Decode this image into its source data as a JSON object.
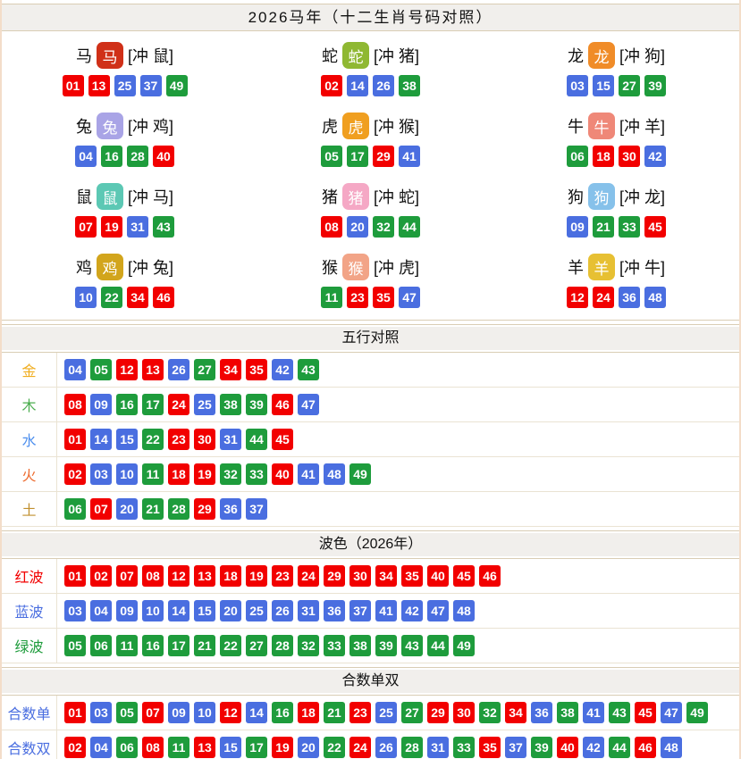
{
  "title": "2026马年（十二生肖号码对照）",
  "palette": {
    "r": "#f20000",
    "b": "#4a6ee0",
    "g": "#1e9c3c"
  },
  "zodiac": {
    "cells": [
      {
        "id": "horse",
        "animal": "马",
        "clash": "[冲 鼠]",
        "icon": "horse-icon",
        "icon_color": "#d03018",
        "numbers": [
          "01r",
          "13r",
          "25b",
          "37b",
          "49g"
        ]
      },
      {
        "id": "snake",
        "animal": "蛇",
        "clash": "[冲 猪]",
        "icon": "snake-icon",
        "icon_color": "#8fb832",
        "numbers": [
          "02r",
          "14b",
          "26b",
          "38g"
        ]
      },
      {
        "id": "dragon",
        "animal": "龙",
        "clash": "[冲 狗]",
        "icon": "dragon-icon",
        "icon_color": "#f08c28",
        "numbers": [
          "03b",
          "15b",
          "27g",
          "39g"
        ]
      },
      {
        "id": "rabbit",
        "animal": "兔",
        "clash": "[冲 鸡]",
        "icon": "rabbit-icon",
        "icon_color": "#a9a4e6",
        "numbers": [
          "04b",
          "16g",
          "28g",
          "40r"
        ]
      },
      {
        "id": "tiger",
        "animal": "虎",
        "clash": "[冲 猴]",
        "icon": "tiger-icon",
        "icon_color": "#f09f20",
        "numbers": [
          "05g",
          "17g",
          "29r",
          "41b"
        ]
      },
      {
        "id": "ox",
        "animal": "牛",
        "clash": "[冲 羊]",
        "icon": "ox-icon",
        "icon_color": "#ef8878",
        "numbers": [
          "06g",
          "18r",
          "30r",
          "42b"
        ]
      },
      {
        "id": "rat",
        "animal": "鼠",
        "clash": "[冲 马]",
        "icon": "rat-icon",
        "icon_color": "#5cc8b4",
        "numbers": [
          "07r",
          "19r",
          "31b",
          "43g"
        ]
      },
      {
        "id": "pig",
        "animal": "猪",
        "clash": "[冲 蛇]",
        "icon": "pig-icon",
        "icon_color": "#f5a8c5",
        "numbers": [
          "08r",
          "20b",
          "32g",
          "44g"
        ]
      },
      {
        "id": "dog",
        "animal": "狗",
        "clash": "[冲 龙]",
        "icon": "dog-icon",
        "icon_color": "#86c1ea",
        "numbers": [
          "09b",
          "21g",
          "33g",
          "45r"
        ]
      },
      {
        "id": "rooster",
        "animal": "鸡",
        "clash": "[冲 兔]",
        "icon": "rooster-icon",
        "icon_color": "#d2a51c",
        "numbers": [
          "10b",
          "22g",
          "34r",
          "46r"
        ]
      },
      {
        "id": "monkey",
        "animal": "猴",
        "clash": "[冲 虎]",
        "icon": "monkey-icon",
        "icon_color": "#f2a487",
        "numbers": [
          "11g",
          "23r",
          "35r",
          "47b"
        ]
      },
      {
        "id": "goat",
        "animal": "羊",
        "clash": "[冲 牛]",
        "icon": "goat-icon",
        "icon_color": "#e7c033",
        "numbers": [
          "12r",
          "24r",
          "36b",
          "48b"
        ]
      }
    ]
  },
  "sections": [
    {
      "id": "wuxing",
      "title": "五行对照",
      "rows": [
        {
          "label": "金",
          "label_color": "#f0ad1e",
          "numbers": [
            "04b",
            "05g",
            "12r",
            "13r",
            "26b",
            "27g",
            "34r",
            "35r",
            "42b",
            "43g"
          ]
        },
        {
          "label": "木",
          "label_color": "#4bae4f",
          "numbers": [
            "08r",
            "09b",
            "16g",
            "17g",
            "24r",
            "25b",
            "38g",
            "39g",
            "46r",
            "47b"
          ]
        },
        {
          "label": "水",
          "label_color": "#4d8fee",
          "numbers": [
            "01r",
            "14b",
            "15b",
            "22g",
            "23r",
            "30r",
            "31b",
            "44g",
            "45r"
          ]
        },
        {
          "label": "火",
          "label_color": "#ed6b2f",
          "numbers": [
            "02r",
            "03b",
            "10b",
            "11g",
            "18r",
            "19r",
            "32g",
            "33g",
            "40r",
            "41b",
            "48b",
            "49g"
          ]
        },
        {
          "label": "土",
          "label_color": "#c08f2e",
          "numbers": [
            "06g",
            "07r",
            "20b",
            "21g",
            "28g",
            "29r",
            "36b",
            "37b"
          ]
        }
      ]
    },
    {
      "id": "bose",
      "title": "波色（2026年）",
      "rows": [
        {
          "label": "红波",
          "label_color": "#f20000",
          "numbers": [
            "01r",
            "02r",
            "07r",
            "08r",
            "12r",
            "13r",
            "18r",
            "19r",
            "23r",
            "24r",
            "29r",
            "30r",
            "34r",
            "35r",
            "40r",
            "45r",
            "46r"
          ]
        },
        {
          "label": "蓝波",
          "label_color": "#4a6ee0",
          "numbers": [
            "03b",
            "04b",
            "09b",
            "10b",
            "14b",
            "15b",
            "20b",
            "25b",
            "26b",
            "31b",
            "36b",
            "37b",
            "41b",
            "42b",
            "47b",
            "48b"
          ]
        },
        {
          "label": "绿波",
          "label_color": "#1e9c3c",
          "numbers": [
            "05g",
            "06g",
            "11g",
            "16g",
            "17g",
            "21g",
            "22g",
            "27g",
            "28g",
            "32g",
            "33g",
            "38g",
            "39g",
            "43g",
            "44g",
            "49g"
          ]
        }
      ]
    },
    {
      "id": "heshu",
      "title": "合数单双",
      "rows": [
        {
          "label": "合数单",
          "label_color": "#4a6ee0",
          "numbers": [
            "01r",
            "03b",
            "05g",
            "07r",
            "09b",
            "10b",
            "12r",
            "14b",
            "16g",
            "18r",
            "21g",
            "23r",
            "25b",
            "27g",
            "29r",
            "30r",
            "32g",
            "34r",
            "36b",
            "38g",
            "41b",
            "43g",
            "45r",
            "47b",
            "49g"
          ]
        },
        {
          "label": "合数双",
          "label_color": "#4a6ee0",
          "numbers": [
            "02r",
            "04b",
            "06g",
            "08r",
            "11g",
            "13r",
            "15b",
            "17g",
            "19r",
            "20b",
            "22g",
            "24r",
            "26b",
            "28g",
            "31b",
            "33g",
            "35r",
            "37b",
            "39g",
            "40r",
            "42b",
            "44g",
            "46r",
            "48b"
          ]
        }
      ]
    }
  ]
}
